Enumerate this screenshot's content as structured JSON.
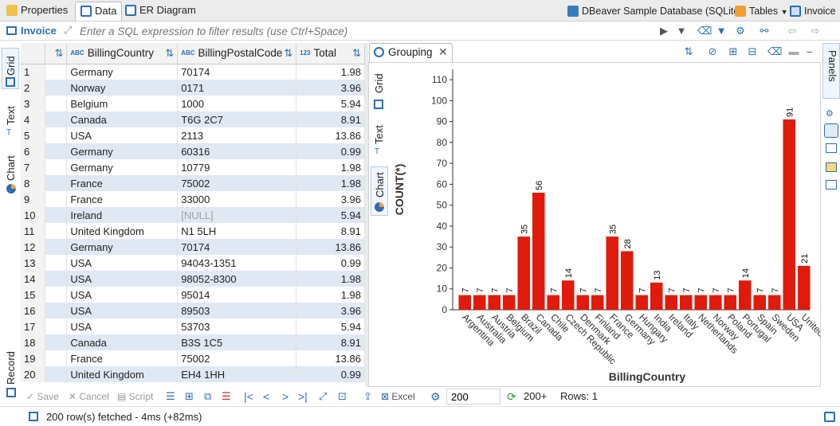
{
  "tabs": [
    {
      "label": "Properties",
      "icon": "properties-icon",
      "active": false
    },
    {
      "label": "Data",
      "icon": "data-grid-icon",
      "active": true
    },
    {
      "label": "ER Diagram",
      "icon": "er-diagram-icon",
      "active": false
    }
  ],
  "header_links": {
    "database": "DBeaver Sample Database (SQLite)",
    "tables": "Tables",
    "table": "Invoice"
  },
  "filter": {
    "table_name": "Invoice",
    "placeholder": "Enter a SQL expression to filter results (use Ctrl+Space)"
  },
  "left_tabs": [
    "Grid",
    "Text",
    "Chart",
    "Record"
  ],
  "grid": {
    "columns": [
      {
        "label": "BillingCountry",
        "type": "ABC"
      },
      {
        "label": "BillingPostalCode",
        "type": "ABC"
      },
      {
        "label": "Total",
        "type": "123"
      }
    ],
    "rows": [
      [
        "1",
        "Germany",
        "70174",
        "1.98"
      ],
      [
        "2",
        "Norway",
        "0171",
        "3.96"
      ],
      [
        "3",
        "Belgium",
        "1000",
        "5.94"
      ],
      [
        "4",
        "Canada",
        "T6G 2C7",
        "8.91"
      ],
      [
        "5",
        "USA",
        "2113",
        "13.86"
      ],
      [
        "6",
        "Germany",
        "60316",
        "0.99"
      ],
      [
        "7",
        "Germany",
        "10779",
        "1.98"
      ],
      [
        "8",
        "France",
        "75002",
        "1.98"
      ],
      [
        "9",
        "France",
        "33000",
        "3.96"
      ],
      [
        "10",
        "Ireland",
        "[NULL]",
        "5.94"
      ],
      [
        "11",
        "United Kingdom",
        "N1 5LH",
        "8.91"
      ],
      [
        "12",
        "Germany",
        "70174",
        "13.86"
      ],
      [
        "13",
        "USA",
        "94043-1351",
        "0.99"
      ],
      [
        "14",
        "USA",
        "98052-8300",
        "1.98"
      ],
      [
        "15",
        "USA",
        "95014",
        "1.98"
      ],
      [
        "16",
        "USA",
        "89503",
        "3.96"
      ],
      [
        "17",
        "USA",
        "53703",
        "5.94"
      ],
      [
        "18",
        "Canada",
        "B3S 1C5",
        "8.91"
      ],
      [
        "19",
        "France",
        "75002",
        "13.86"
      ],
      [
        "20",
        "United Kingdom",
        "EH4 1HH",
        "0.99"
      ]
    ]
  },
  "grouping": {
    "tab_label": "Grouping",
    "side_tabs": [
      "Grid",
      "Text",
      "Chart"
    ]
  },
  "chart_data": {
    "type": "bar",
    "xlabel": "BillingCountry",
    "ylabel": "COUNT(*)",
    "ylim": [
      0,
      115
    ],
    "yticks": [
      0,
      10,
      20,
      30,
      40,
      50,
      60,
      70,
      80,
      90,
      100,
      110
    ],
    "categories": [
      "Argentina",
      "Australia",
      "Austria",
      "Belgium",
      "Brazil",
      "Canada",
      "Chile",
      "Czech Republic",
      "Denmark",
      "Finland",
      "France",
      "Germany",
      "Hungary",
      "India",
      "Ireland",
      "Italy",
      "Netherlands",
      "Norway",
      "Poland",
      "Portugal",
      "Spain",
      "Sweden",
      "USA",
      "United K..."
    ],
    "values": [
      7,
      7,
      7,
      7,
      35,
      56,
      7,
      14,
      7,
      7,
      35,
      28,
      7,
      13,
      7,
      7,
      7,
      7,
      7,
      14,
      7,
      7,
      91,
      21
    ],
    "color": "#e01b0c",
    "grid": false,
    "legend": "none"
  },
  "panels_label": "Panels",
  "bottom": {
    "save": "Save",
    "cancel": "Cancel",
    "script": "Script",
    "export": "Excel",
    "fetch_size": "200",
    "fetch_more": "200+",
    "rows": "Rows: 1"
  },
  "status": "200 row(s) fetched - 4ms (+82ms)",
  "colors": {
    "accent": "#2d6db3",
    "bar": "#e01b0c",
    "row_alt": "#e0e8f3"
  }
}
